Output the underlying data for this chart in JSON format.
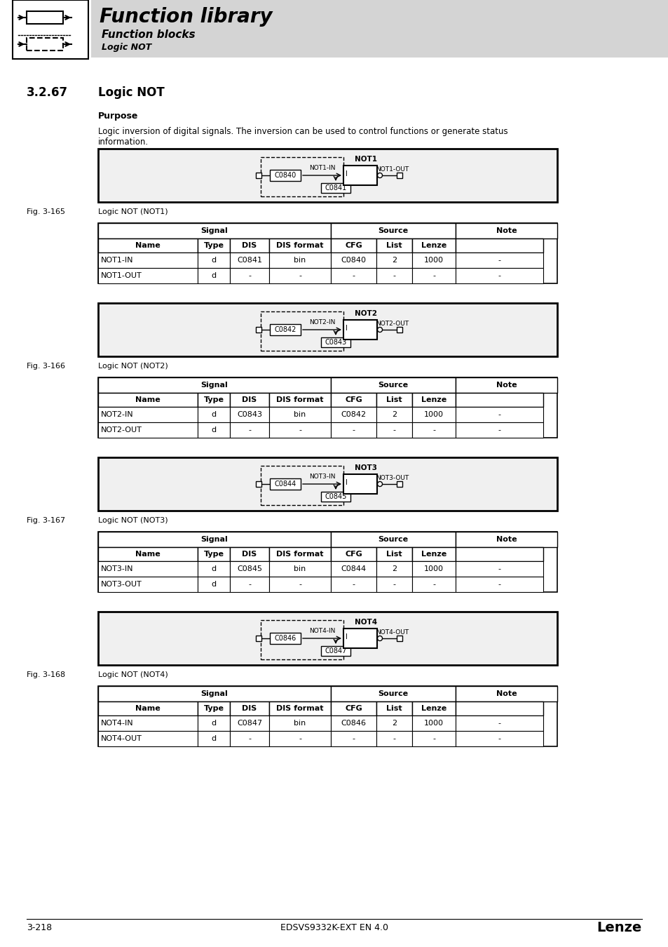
{
  "page_bg": "#ffffff",
  "header_bg": "#d4d4d4",
  "header_title": "Function library",
  "header_sub1": "Function blocks",
  "header_sub2": "Logic NOT",
  "section_number": "3.2.67",
  "section_title": "Logic NOT",
  "purpose_title": "Purpose",
  "purpose_text1": "Logic inversion of digital signals. The inversion can be used to control functions or generate status",
  "purpose_text2": "information.",
  "fig_labels": [
    "Fig. 3-165",
    "Fig. 3-166",
    "Fig. 3-167",
    "Fig. 3-168"
  ],
  "fig_captions": [
    "Logic NOT (NOT1)",
    "Logic NOT (NOT2)",
    "Logic NOT (NOT3)",
    "Logic NOT (NOT4)"
  ],
  "block_names": [
    "NOT1",
    "NOT2",
    "NOT3",
    "NOT4"
  ],
  "block_in_labels": [
    "NOT1-IN",
    "NOT2-IN",
    "NOT3-IN",
    "NOT4-IN"
  ],
  "block_out_labels": [
    "NOT1-OUT",
    "NOT2-OUT",
    "NOT3-OUT",
    "NOT4-OUT"
  ],
  "block_cfg_codes": [
    "C0840",
    "C0842",
    "C0844",
    "C0846"
  ],
  "block_dis_codes": [
    "C0841",
    "C0843",
    "C0845",
    "C0847"
  ],
  "table_signal_header": "Signal",
  "table_source_header": "Source",
  "table_note_header": "Note",
  "tables": [
    {
      "rows": [
        [
          "NOT1-IN",
          "d",
          "C0841",
          "bin",
          "C0840",
          "2",
          "1000",
          "-"
        ],
        [
          "NOT1-OUT",
          "d",
          "-",
          "-",
          "-",
          "-",
          "-",
          "-"
        ]
      ]
    },
    {
      "rows": [
        [
          "NOT2-IN",
          "d",
          "C0843",
          "bin",
          "C0842",
          "2",
          "1000",
          "-"
        ],
        [
          "NOT2-OUT",
          "d",
          "-",
          "-",
          "-",
          "-",
          "-",
          "-"
        ]
      ]
    },
    {
      "rows": [
        [
          "NOT3-IN",
          "d",
          "C0845",
          "bin",
          "C0844",
          "2",
          "1000",
          "-"
        ],
        [
          "NOT3-OUT",
          "d",
          "-",
          "-",
          "-",
          "-",
          "-",
          "-"
        ]
      ]
    },
    {
      "rows": [
        [
          "NOT4-IN",
          "d",
          "C0847",
          "bin",
          "C0846",
          "2",
          "1000",
          "-"
        ],
        [
          "NOT4-OUT",
          "d",
          "-",
          "-",
          "-",
          "-",
          "-",
          "-"
        ]
      ]
    }
  ],
  "footer_left": "3-218",
  "footer_center": "EDSVS9332K-EXT EN 4.0",
  "footer_right": "Lenze"
}
